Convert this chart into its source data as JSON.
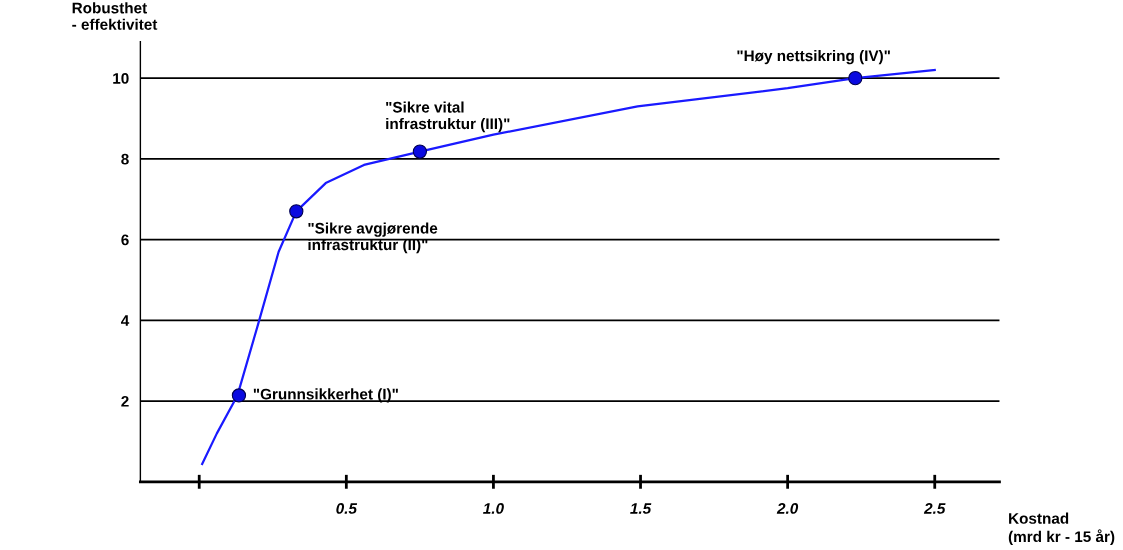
{
  "chart_data": {
    "type": "line",
    "xlabel": "Kostnad\n(mrd kr - 15 år)",
    "ylabel": "Robusthet\n- effektivitet",
    "xlim": [
      -0.2,
      2.72
    ],
    "ylim": [
      0,
      10.9
    ],
    "xticks": [
      {
        "value": 0,
        "label": null
      },
      0.5,
      {
        "value": 1,
        "label": "1.0"
      },
      1.5,
      {
        "value": 2,
        "label": "2.0"
      },
      2.5
    ],
    "yticks": [
      2,
      4,
      6,
      8,
      10
    ],
    "grid": "y",
    "series": [
      {
        "color": "#1a1aff",
        "marker": "none",
        "x": [
          0.01,
          0.06,
          0.13,
          0.2,
          0.27,
          0.33,
          0.43,
          0.56,
          0.75,
          1.0,
          1.49,
          2.0,
          2.23,
          2.5
        ],
        "values": [
          0.44,
          1.2,
          2.14,
          3.9,
          5.7,
          6.7,
          7.4,
          7.85,
          8.18,
          8.6,
          9.3,
          9.75,
          10.0,
          10.2
        ]
      },
      {
        "type": "scatter",
        "color": "#0a0ae0",
        "marker": "circle",
        "x": [
          0.135,
          0.33,
          0.75,
          2.23
        ],
        "values": [
          2.14,
          6.7,
          8.18,
          10.0
        ]
      }
    ],
    "annotations": [
      {
        "text": "\"Grunnsikkerhet (I)\"",
        "x": 0.135,
        "y": 2.14
      },
      {
        "text": "\"Sikre avgjørende\ninfrastruktur (II)\"",
        "x": 0.33,
        "y": 6.7
      },
      {
        "text": "\"Sikre vital\ninfrastruktur (III)\"",
        "x": 0.75,
        "y": 8.18
      },
      {
        "text": "\"Høy nettsikring (IV)\"",
        "x": 2.23,
        "y": 10.0
      }
    ]
  }
}
